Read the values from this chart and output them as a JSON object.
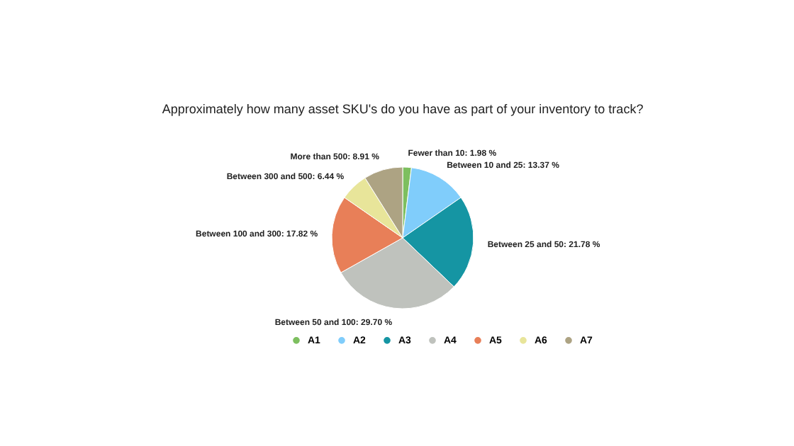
{
  "chart_data": {
    "type": "pie",
    "title": "Approximately how many asset SKU's do you have as part of your inventory to track?",
    "categories": [
      "A1",
      "A2",
      "A3",
      "A4",
      "A5",
      "A6",
      "A7"
    ],
    "values": [
      1.98,
      13.37,
      21.78,
      29.7,
      17.82,
      6.44,
      8.91
    ],
    "colors": [
      "#7dbf5f",
      "#80cdfb",
      "#1595a3",
      "#bfc2bd",
      "#e87f58",
      "#e8e59a",
      "#ada383"
    ],
    "value_labels": [
      "Fewer than 10: 1.98 %",
      "Between 10 and 25: 13.37 %",
      "Between 25 and 50: 21.78 %",
      "Between 50 and 100: 29.70 %",
      "Between 100 and 300: 17.82 %",
      "Between 300 and 500: 6.44 %",
      "More than 500: 8.91 %"
    ],
    "legend": "bottom"
  }
}
